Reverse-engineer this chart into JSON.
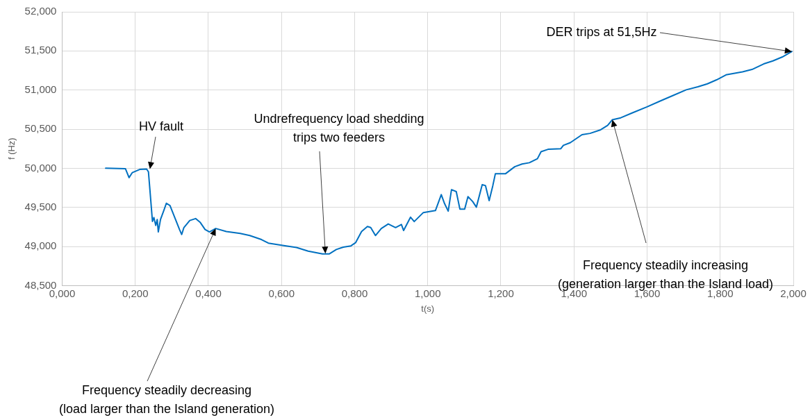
{
  "chart_data": {
    "type": "line",
    "xlabel": "t(s)",
    "ylabel": "f (Hz)",
    "xlim": [
      0,
      2
    ],
    "ylim": [
      48.5,
      52
    ],
    "xticks": [
      {
        "value": 0,
        "label": "0,000"
      },
      {
        "value": 0.2,
        "label": "0,200"
      },
      {
        "value": 0.4,
        "label": "0,400"
      },
      {
        "value": 0.6,
        "label": "0,600"
      },
      {
        "value": 0.8,
        "label": "0,800"
      },
      {
        "value": 1,
        "label": "1,000"
      },
      {
        "value": 1.2,
        "label": "1,200"
      },
      {
        "value": 1.4,
        "label": "1,400"
      },
      {
        "value": 1.6,
        "label": "1,600"
      },
      {
        "value": 1.8,
        "label": "1,800"
      },
      {
        "value": 2,
        "label": "2,000"
      }
    ],
    "yticks": [
      {
        "value": 48.5,
        "label": "48,500"
      },
      {
        "value": 49,
        "label": "49,000"
      },
      {
        "value": 49.5,
        "label": "49,500"
      },
      {
        "value": 50,
        "label": "50,000"
      },
      {
        "value": 50.5,
        "label": "50,500"
      },
      {
        "value": 51,
        "label": "51,000"
      },
      {
        "value": 51.5,
        "label": "51,500"
      },
      {
        "value": 52,
        "label": "52,000"
      }
    ],
    "grid": true,
    "legend": false,
    "marker": "none",
    "line_style": "solid",
    "series": [
      {
        "color": "#0070c0",
        "x": [
          0.119,
          0.173,
          0.183,
          0.192,
          0.212,
          0.231,
          0.236,
          0.24,
          0.247,
          0.251,
          0.256,
          0.26,
          0.263,
          0.269,
          0.279,
          0.285,
          0.295,
          0.308,
          0.321,
          0.327,
          0.333,
          0.349,
          0.365,
          0.378,
          0.391,
          0.403,
          0.42,
          0.449,
          0.487,
          0.513,
          0.545,
          0.564,
          0.603,
          0.641,
          0.673,
          0.712,
          0.731,
          0.75,
          0.769,
          0.79,
          0.803,
          0.819,
          0.835,
          0.844,
          0.857,
          0.873,
          0.892,
          0.912,
          0.928,
          0.934,
          0.953,
          0.963,
          0.988,
          1.021,
          1.037,
          1.046,
          1.056,
          1.065,
          1.078,
          1.088,
          1.101,
          1.11,
          1.123,
          1.133,
          1.149,
          1.158,
          1.168,
          1.178,
          1.185,
          1.213,
          1.238,
          1.258,
          1.278,
          1.3,
          1.31,
          1.329,
          1.364,
          1.371,
          1.39,
          1.422,
          1.444,
          1.473,
          1.492,
          1.505,
          1.528,
          1.56,
          1.6,
          1.637,
          1.669,
          1.707,
          1.739,
          1.765,
          1.79,
          1.816,
          1.861,
          1.887,
          1.919,
          1.944,
          1.97,
          1.996
        ],
        "values": [
          50.0,
          49.995,
          49.88,
          49.945,
          49.985,
          49.99,
          49.955,
          49.727,
          49.32,
          49.37,
          49.268,
          49.345,
          49.186,
          49.345,
          49.472,
          49.553,
          49.523,
          49.37,
          49.217,
          49.153,
          49.242,
          49.332,
          49.357,
          49.306,
          49.217,
          49.186,
          49.23,
          49.191,
          49.166,
          49.14,
          49.089,
          49.043,
          49.013,
          48.987,
          48.941,
          48.906,
          48.906,
          48.962,
          48.992,
          49.008,
          49.051,
          49.191,
          49.255,
          49.242,
          49.14,
          49.23,
          49.288,
          49.242,
          49.281,
          49.204,
          49.375,
          49.319,
          49.434,
          49.459,
          49.663,
          49.548,
          49.452,
          49.727,
          49.702,
          49.477,
          49.477,
          49.638,
          49.574,
          49.503,
          49.791,
          49.778,
          49.587,
          49.778,
          49.931,
          49.931,
          50.02,
          50.054,
          50.071,
          50.122,
          50.212,
          50.242,
          50.25,
          50.293,
          50.327,
          50.429,
          50.446,
          50.492,
          50.548,
          50.62,
          50.645,
          50.709,
          50.786,
          50.862,
          50.926,
          51.003,
          51.041,
          51.079,
          51.13,
          51.194,
          51.232,
          51.263,
          51.334,
          51.372,
          51.423,
          51.492
        ]
      }
    ],
    "annotations": [
      {
        "text": "HV fault",
        "x": 0.24,
        "y": 49.99
      },
      {
        "text": "Undrefrequency load shedding\ntrips two feeders",
        "x": 0.72,
        "y": 48.91
      },
      {
        "text": "Frequency steadily decreasing\n(load larger than the Island generation)",
        "x": 0.42,
        "y": 49.23
      },
      {
        "text": "Frequency steadily increasing\n(generation larger than the Island load)",
        "x": 1.505,
        "y": 50.62
      },
      {
        "text": "DER trips at 51,5Hz",
        "x": 1.996,
        "y": 51.492
      }
    ]
  }
}
